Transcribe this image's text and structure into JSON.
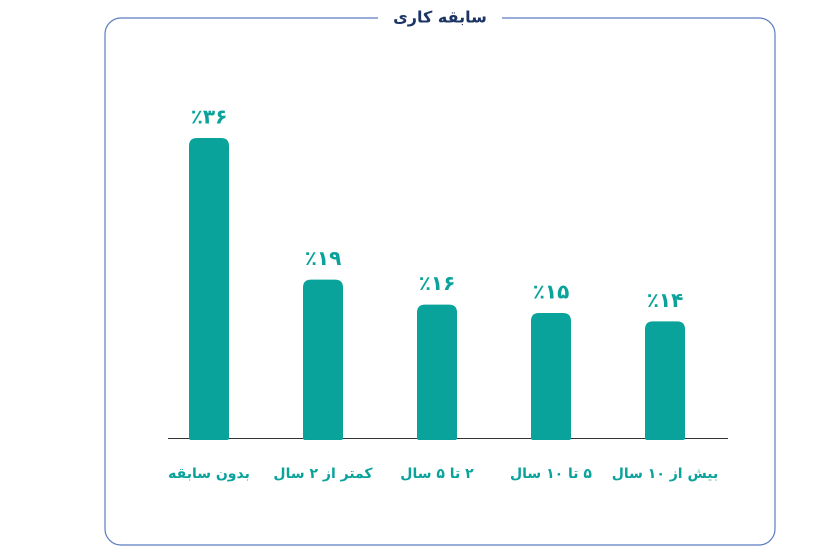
{
  "chart_data": {
    "type": "bar",
    "title": "سابقه کاری",
    "categories": [
      "بدون سابقه",
      "کمتر از ۲ سال",
      "۲ تا ۵ سال",
      "۵ تا ۱۰ سال",
      "بیش از ۱۰ سال"
    ],
    "values": [
      36,
      19,
      16,
      15,
      14
    ],
    "value_labels": [
      "٪۳۶",
      "٪۱۹",
      "٪۱۶",
      "٪۱۵",
      "٪۱۴"
    ],
    "color": "#0aa39b"
  }
}
